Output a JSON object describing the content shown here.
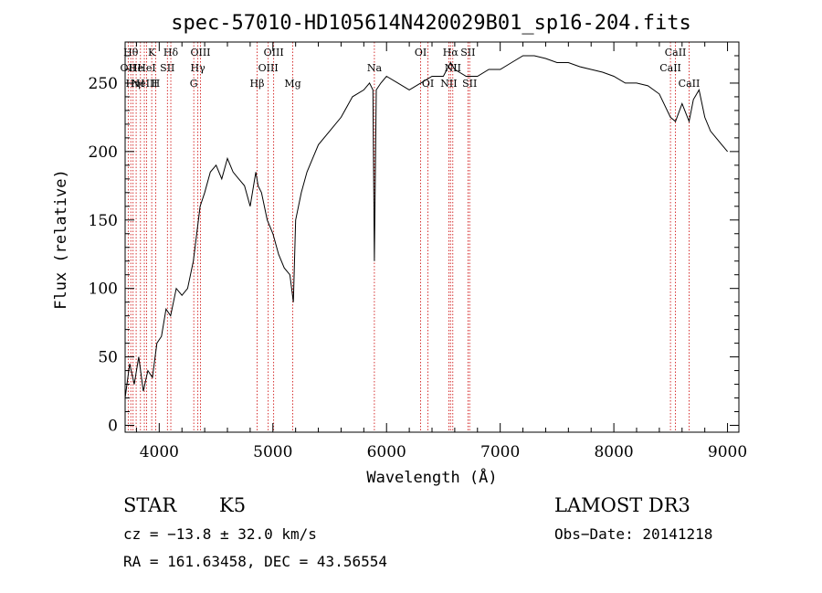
{
  "chart_data": {
    "type": "line",
    "title": "spec-57010-HD105614N420029B01_sp16-204.fits",
    "xlabel": "Wavelength (Å)",
    "ylabel": "Flux (relative)",
    "xlim": [
      3700,
      9100
    ],
    "ylim": [
      -5,
      280
    ],
    "xticks": [
      4000,
      5000,
      6000,
      7000,
      8000,
      9000
    ],
    "yticks": [
      0,
      50,
      100,
      150,
      200,
      250
    ],
    "grid": false,
    "colors": {
      "spectrum": "#000000",
      "lines": "#cc0000"
    },
    "series": [
      {
        "x": [
          3700,
          3740,
          3780,
          3820,
          3860,
          3900,
          3940,
          3980,
          4020,
          4060,
          4100,
          4150,
          4200,
          4250,
          4300,
          4330,
          4360,
          4400,
          4450,
          4500,
          4550,
          4600,
          4650,
          4700,
          4750,
          4800,
          4850,
          4870,
          4900,
          4950,
          5000,
          5050,
          5100,
          5150,
          5180,
          5200,
          5250,
          5300,
          5350,
          5400,
          5500,
          5600,
          5700,
          5800,
          5850,
          5880,
          5893,
          5910,
          5950,
          6000,
          6100,
          6200,
          6300,
          6400,
          6500,
          6563,
          6600,
          6700,
          6800,
          6900,
          7000,
          7100,
          7200,
          7300,
          7400,
          7500,
          7600,
          7700,
          7800,
          7900,
          8000,
          8100,
          8200,
          8300,
          8400,
          8498,
          8542,
          8600,
          8662,
          8700,
          8750,
          8800,
          8850,
          8900,
          8950,
          9000
        ],
        "y": [
          20,
          45,
          30,
          50,
          25,
          40,
          35,
          60,
          65,
          85,
          80,
          100,
          95,
          100,
          120,
          140,
          160,
          170,
          185,
          190,
          180,
          195,
          185,
          180,
          175,
          160,
          185,
          175,
          170,
          150,
          140,
          125,
          115,
          110,
          90,
          150,
          170,
          185,
          195,
          205,
          215,
          225,
          240,
          245,
          250,
          245,
          120,
          245,
          250,
          255,
          250,
          245,
          250,
          255,
          255,
          265,
          260,
          255,
          255,
          260,
          260,
          265,
          270,
          270,
          268,
          265,
          265,
          262,
          260,
          258,
          255,
          250,
          250,
          248,
          242,
          225,
          222,
          235,
          222,
          238,
          245,
          225,
          215,
          210,
          205,
          200
        ]
      }
    ],
    "spectral_lines": [
      {
        "wavelength": 3727,
        "label": "OII",
        "row": 2
      },
      {
        "wavelength": 3750,
        "label": "Hθ",
        "row": 1
      },
      {
        "wavelength": 3770,
        "label": "Hη",
        "row": 3
      },
      {
        "wavelength": 3797,
        "label": "He",
        "row": 2
      },
      {
        "wavelength": 3835,
        "label": "H",
        "row": 3
      },
      {
        "wavelength": 3869,
        "label": "NeIII",
        "row": 3
      },
      {
        "wavelength": 3889,
        "label": "HeI",
        "row": 2
      },
      {
        "wavelength": 3934,
        "label": "K",
        "row": 1
      },
      {
        "wavelength": 3969,
        "label": "H",
        "row": 3
      },
      {
        "wavelength": 4072,
        "label": "SII",
        "row": 2
      },
      {
        "wavelength": 4102,
        "label": "Hδ",
        "row": 1
      },
      {
        "wavelength": 4304,
        "label": "G",
        "row": 3
      },
      {
        "wavelength": 4340,
        "label": "Hγ",
        "row": 2
      },
      {
        "wavelength": 4363,
        "label": "OIII",
        "row": 1
      },
      {
        "wavelength": 4861,
        "label": "Hβ",
        "row": 3
      },
      {
        "wavelength": 4959,
        "label": "OIII",
        "row": 2
      },
      {
        "wavelength": 5007,
        "label": "OIII",
        "row": 1
      },
      {
        "wavelength": 5175,
        "label": "Mg",
        "row": 3
      },
      {
        "wavelength": 5893,
        "label": "Na",
        "row": 2
      },
      {
        "wavelength": 6300,
        "label": "OI",
        "row": 1
      },
      {
        "wavelength": 6364,
        "label": "OI",
        "row": 3
      },
      {
        "wavelength": 6548,
        "label": "NII",
        "row": 3
      },
      {
        "wavelength": 6563,
        "label": "Hα",
        "row": 1
      },
      {
        "wavelength": 6583,
        "label": "NII",
        "row": 2
      },
      {
        "wavelength": 6716,
        "label": "SII",
        "row": 1
      },
      {
        "wavelength": 6731,
        "label": "SII",
        "row": 3
      },
      {
        "wavelength": 8498,
        "label": "CaII",
        "row": 2
      },
      {
        "wavelength": 8542,
        "label": "CaII",
        "row": 1
      },
      {
        "wavelength": 8662,
        "label": "CaII",
        "row": 3
      }
    ]
  },
  "info": {
    "object_class": "STAR",
    "subclass": "K5",
    "survey": "LAMOST DR3",
    "redshift": "cz = −13.8 ± 32.0 km/s",
    "obs_date": "Obs−Date: 20141218",
    "coords": "RA = 161.63458, DEC =  43.56554"
  }
}
